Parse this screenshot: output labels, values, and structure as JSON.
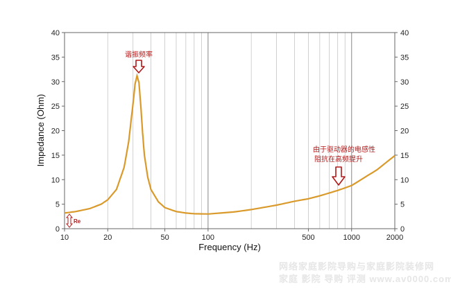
{
  "chart_data": {
    "type": "line",
    "title": "",
    "xlabel": "Frequency (Hz)",
    "ylabel": "Impedance (Ohm)",
    "x_scale": "log",
    "xlim": [
      10,
      2000
    ],
    "ylim": [
      0,
      40
    ],
    "x_ticks": [
      10,
      20,
      50,
      100,
      500,
      1000,
      2000
    ],
    "y_ticks": [
      0,
      5,
      10,
      15,
      20,
      25,
      30,
      35,
      40
    ],
    "grid": "vertical",
    "line_color": "#d99a2b",
    "series": [
      {
        "x": [
          10,
          12,
          15,
          18,
          20,
          23,
          26,
          28,
          30,
          31,
          32,
          33,
          34,
          35,
          36,
          38,
          40,
          45,
          50,
          60,
          70,
          80,
          100,
          150,
          200,
          300,
          400,
          500,
          600,
          800,
          1000,
          1500,
          2000
        ],
        "y": [
          3.2,
          3.5,
          4.1,
          5.0,
          5.9,
          8.0,
          12.5,
          17.8,
          25.5,
          29.5,
          31.2,
          29.8,
          25.0,
          19.5,
          15.0,
          10.5,
          8.0,
          5.5,
          4.3,
          3.5,
          3.2,
          3.05,
          3.0,
          3.4,
          3.9,
          4.8,
          5.6,
          6.1,
          6.7,
          7.8,
          8.8,
          12.0,
          14.9
        ]
      }
    ],
    "annotations": [
      {
        "text": "谐振频率",
        "x": 33,
        "y": 31.2
      },
      {
        "text": "由于驱动器的电感性",
        "x": 800,
        "y": 9.5
      },
      {
        "text": "阻抗在高频提升",
        "x": 800,
        "y": 9.5
      },
      {
        "text": "Re",
        "x": 10,
        "y": 3.2
      }
    ]
  },
  "watermark": {
    "line1": "网络家庭影院导购与家庭影院装修网",
    "line2": "家庭 影院 导购 评测 www.av0000.com"
  }
}
